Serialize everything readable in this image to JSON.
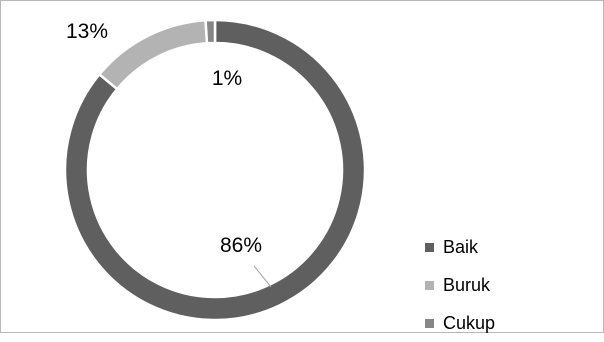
{
  "chart_data": {
    "type": "pie",
    "donut": true,
    "title": "",
    "categories": [
      "Baik",
      "Buruk",
      "Cukup"
    ],
    "values": [
      86,
      13,
      1
    ],
    "data_labels": [
      "86%",
      "13%",
      "1%"
    ],
    "colors": [
      "#5f5f5f",
      "#b3b3b3",
      "#878787"
    ],
    "legend_position": "right-bottom"
  }
}
